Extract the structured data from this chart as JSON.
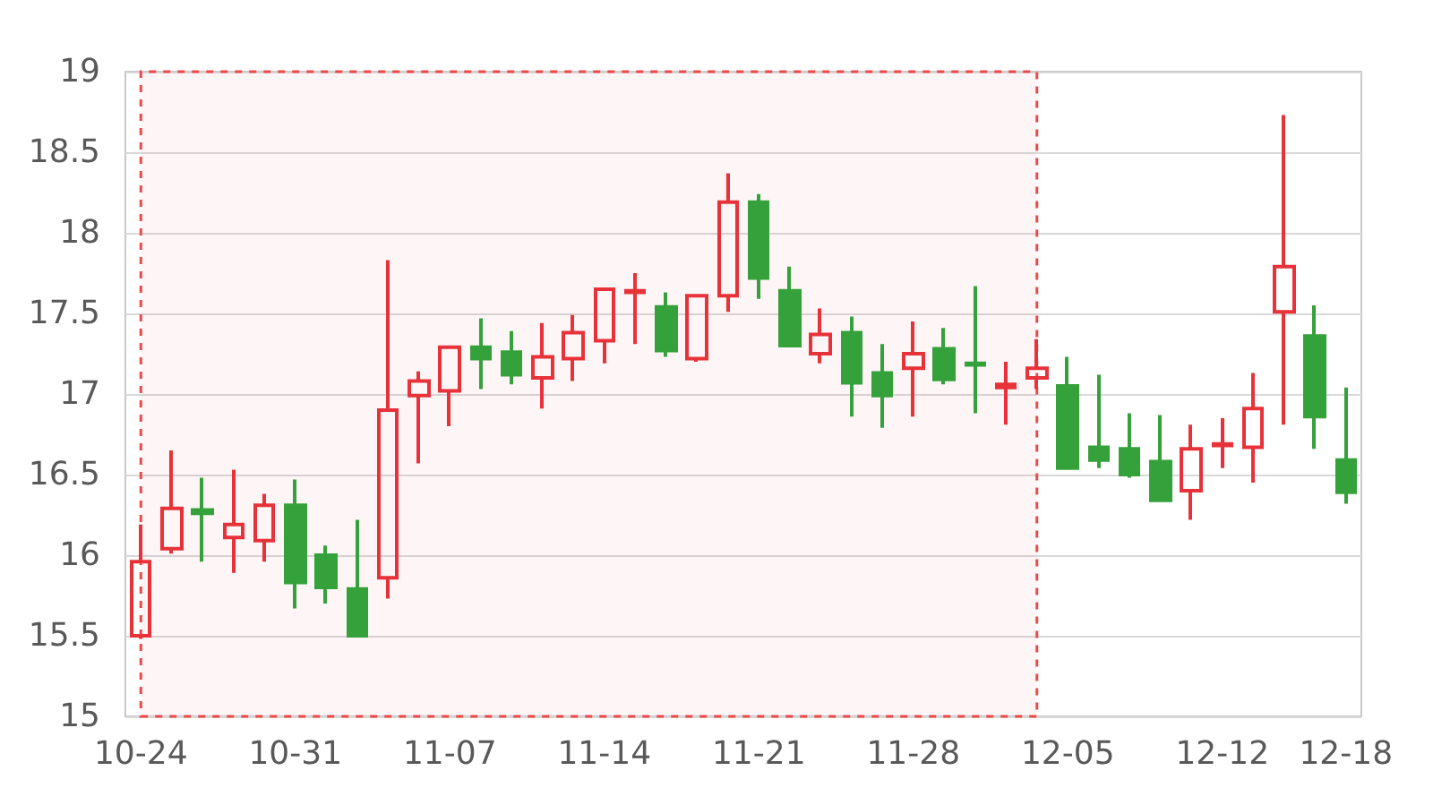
{
  "chart_data": {
    "type": "candlestick",
    "categories": [
      "10-24",
      null,
      null,
      null,
      null,
      "10-31",
      null,
      null,
      null,
      null,
      "11-07",
      null,
      null,
      null,
      null,
      "11-14",
      null,
      null,
      null,
      null,
      "11-21",
      null,
      null,
      null,
      null,
      "11-28",
      null,
      null,
      null,
      null,
      "12-05",
      null,
      null,
      null,
      null,
      "12-12",
      null,
      null,
      null,
      "12-18"
    ],
    "ohlc": [
      [
        15.5,
        16.19,
        15.48,
        15.96
      ],
      [
        16.04,
        16.65,
        16.01,
        16.29
      ],
      [
        16.28,
        16.48,
        15.96,
        16.26
      ],
      [
        16.11,
        16.53,
        15.89,
        16.19
      ],
      [
        16.09,
        16.38,
        15.96,
        16.31
      ],
      [
        16.31,
        16.47,
        15.67,
        15.83
      ],
      [
        16.0,
        16.06,
        15.7,
        15.8
      ],
      [
        15.79,
        16.22,
        15.5,
        15.5
      ],
      [
        15.86,
        17.83,
        15.73,
        16.9
      ],
      [
        16.99,
        17.14,
        16.57,
        17.08
      ],
      [
        17.02,
        17.3,
        16.8,
        17.29
      ],
      [
        17.29,
        17.47,
        17.03,
        17.22
      ],
      [
        17.26,
        17.39,
        17.06,
        17.12
      ],
      [
        17.1,
        17.44,
        16.91,
        17.23
      ],
      [
        17.22,
        17.49,
        17.08,
        17.38
      ],
      [
        17.33,
        17.66,
        17.19,
        17.65
      ],
      [
        17.63,
        17.75,
        17.31,
        17.64
      ],
      [
        17.54,
        17.63,
        17.23,
        17.27
      ],
      [
        17.22,
        17.62,
        17.2,
        17.61
      ],
      [
        17.61,
        18.37,
        17.51,
        18.19
      ],
      [
        18.19,
        18.24,
        17.59,
        17.72
      ],
      [
        17.64,
        17.79,
        17.3,
        17.3
      ],
      [
        17.25,
        17.53,
        17.19,
        17.37
      ],
      [
        17.38,
        17.48,
        16.86,
        17.07
      ],
      [
        17.13,
        17.31,
        16.79,
        16.99
      ],
      [
        17.16,
        17.45,
        16.86,
        17.25
      ],
      [
        17.28,
        17.41,
        17.06,
        17.09
      ],
      [
        17.19,
        17.67,
        16.88,
        17.18
      ],
      [
        17.04,
        17.2,
        16.81,
        17.06
      ],
      [
        17.1,
        17.34,
        17.03,
        17.16
      ],
      [
        17.05,
        17.23,
        16.54,
        16.54
      ],
      [
        16.67,
        17.12,
        16.54,
        16.59
      ],
      [
        16.66,
        16.88,
        16.48,
        16.5
      ],
      [
        16.58,
        16.87,
        16.34,
        16.34
      ],
      [
        16.4,
        16.81,
        16.22,
        16.66
      ],
      [
        16.68,
        16.85,
        16.54,
        16.69
      ],
      [
        16.67,
        17.13,
        16.45,
        16.91
      ],
      [
        17.51,
        18.73,
        16.81,
        17.79
      ],
      [
        17.36,
        17.55,
        16.66,
        16.86
      ],
      [
        16.59,
        17.04,
        16.32,
        16.39
      ]
    ],
    "colors": [
      "#e8323a",
      "#e8323a",
      "#35a13a",
      "#e8323a",
      "#e8323a",
      "#35a13a",
      "#35a13a",
      "#35a13a",
      "#e8323a",
      "#e8323a",
      "#e8323a",
      "#35a13a",
      "#35a13a",
      "#e8323a",
      "#e8323a",
      "#e8323a",
      "#e8323a",
      "#35a13a",
      "#e8323a",
      "#e8323a",
      "#35a13a",
      "#35a13a",
      "#e8323a",
      "#35a13a",
      "#35a13a",
      "#e8323a",
      "#35a13a",
      "#35a13a",
      "#e8323a",
      "#e8323a",
      "#35a13a",
      "#35a13a",
      "#35a13a",
      "#35a13a",
      "#e8323a",
      "#e8323a",
      "#e8323a",
      "#e8323a",
      "#35a13a",
      "#35a13a"
    ],
    "ylim": [
      15,
      19
    ],
    "yticks": [
      15,
      15.5,
      16,
      16.5,
      17,
      17.5,
      18,
      18.5,
      19
    ],
    "grid": "y"
  }
}
